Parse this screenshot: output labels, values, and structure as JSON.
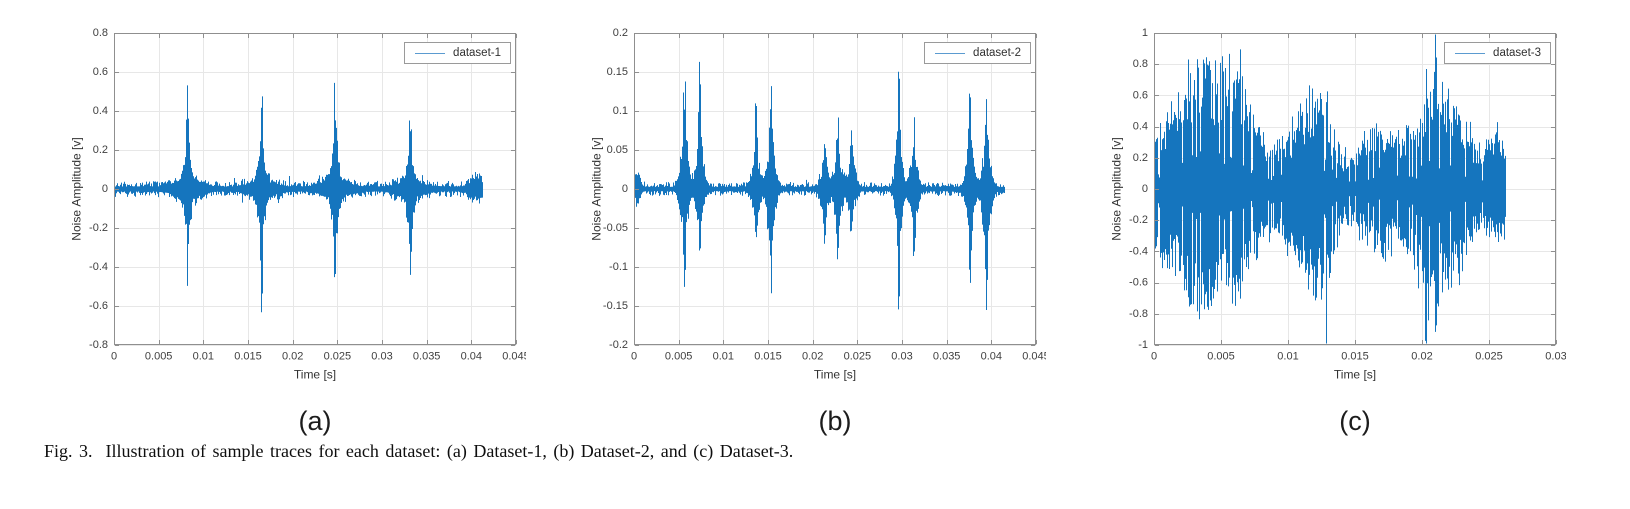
{
  "figure": {
    "caption": "Fig. 3.  Illustration of sample traces for each dataset: (a) Dataset-1, (b) Dataset-2, and (c) Dataset-3."
  },
  "colors": {
    "line": "#1575be",
    "grid": "#e7e7e7",
    "axis": "#8f8f8f",
    "tick_text": "#3f3f3f",
    "label_text": "#333333"
  },
  "chart_data": [
    {
      "type": "line",
      "panel_label": "(a)",
      "legend": "dataset-1",
      "xlabel": "Time [s]",
      "ylabel": "Noise Amplitude [v]",
      "xlim": [
        0,
        0.045
      ],
      "ylim": [
        -0.8,
        0.8
      ],
      "xticks": [
        0,
        0.005,
        0.01,
        0.015,
        0.02,
        0.025,
        0.03,
        0.035,
        0.04,
        0.045
      ],
      "xtick_labels": [
        "0",
        "0.005",
        "0.01",
        "0.015",
        "0.02",
        "0.025",
        "0.03",
        "0.035",
        "0.04",
        "0.045"
      ],
      "yticks": [
        -0.8,
        -0.6,
        -0.4,
        -0.2,
        0,
        0.2,
        0.4,
        0.6,
        0.8
      ],
      "ytick_labels": [
        "-0.8",
        "-0.6",
        "-0.4",
        "-0.2",
        "0",
        "0.2",
        "0.4",
        "0.6",
        "0.8"
      ],
      "grid": true,
      "legend_position": "top-right",
      "signal": {
        "description": "broadband noise floor ~±0.05 V with four sharp bipolar spikes",
        "seed": 7,
        "duration": 0.0413,
        "noise_floor": 0.042,
        "burst_fill": [
          0.5,
          0.5
        ],
        "spike_prob": 0.03,
        "spike_gain": 1.0,
        "streak_prob": 0,
        "bursts": [
          {
            "t": 0.0082,
            "up": 0.57,
            "down": 0.45,
            "w": 0.0003,
            "sharp": true
          },
          {
            "t": 0.0165,
            "up": 0.53,
            "down": 0.64,
            "w": 0.0003,
            "sharp": true
          },
          {
            "t": 0.0247,
            "up": 0.62,
            "down": 0.56,
            "w": 0.0003,
            "sharp": true
          },
          {
            "t": 0.0331,
            "up": 0.51,
            "down": 0.56,
            "w": 0.0003,
            "sharp": true
          },
          {
            "t": 0.0082,
            "up": 0.055,
            "down": 0.055,
            "w": 0.0012,
            "sharp": false
          },
          {
            "t": 0.0165,
            "up": 0.05,
            "down": 0.05,
            "w": 0.0012,
            "sharp": false
          },
          {
            "t": 0.0247,
            "up": 0.055,
            "down": 0.055,
            "w": 0.0012,
            "sharp": false
          },
          {
            "t": 0.0331,
            "up": 0.05,
            "down": 0.05,
            "w": 0.0012,
            "sharp": false
          },
          {
            "t": 0.0405,
            "up": 0.065,
            "down": 0.05,
            "w": 0.0006,
            "sharp": false
          }
        ]
      }
    },
    {
      "type": "line",
      "panel_label": "(b)",
      "legend": "dataset-2",
      "xlabel": "Time [s]",
      "ylabel": "Noise Amplitude [v]",
      "xlim": [
        0,
        0.045
      ],
      "ylim": [
        -0.2,
        0.2
      ],
      "xticks": [
        0,
        0.005,
        0.01,
        0.015,
        0.02,
        0.025,
        0.03,
        0.035,
        0.04,
        0.045
      ],
      "xtick_labels": [
        "0",
        "0.005",
        "0.01",
        "0.015",
        "0.02",
        "0.025",
        "0.03",
        "0.035",
        "0.04",
        "0.045"
      ],
      "yticks": [
        -0.2,
        -0.15,
        -0.1,
        -0.05,
        0,
        0.05,
        0.1,
        0.15,
        0.2
      ],
      "ytick_labels": [
        "-0.2",
        "-0.15",
        "-0.1",
        "-0.05",
        "0",
        "0.05",
        "0.1",
        "0.15",
        "0.2"
      ],
      "grid": true,
      "legend_position": "top-right",
      "signal": {
        "description": "very low noise floor ~±0.01 V with five groups of paired noise bursts",
        "seed": 13,
        "duration": 0.0415,
        "noise_floor": 0.009,
        "burst_fill": [
          0.5,
          0.5
        ],
        "spike_prob": 0.03,
        "spike_gain": 1.2,
        "streak_prob": 0,
        "bursts": [
          {
            "t": 0.0003,
            "up": 0.025,
            "down": 0.02,
            "w": 0.0003,
            "sharp": false
          },
          {
            "t": 0.0056,
            "up": 0.185,
            "down": 0.14,
            "w": 0.0004,
            "sharp": true
          },
          {
            "t": 0.0073,
            "up": 0.17,
            "down": 0.1,
            "w": 0.0004,
            "sharp": true
          },
          {
            "t": 0.0136,
            "up": 0.117,
            "down": 0.08,
            "w": 0.0004,
            "sharp": true
          },
          {
            "t": 0.0153,
            "up": 0.17,
            "down": 0.175,
            "w": 0.0004,
            "sharp": true
          },
          {
            "t": 0.0213,
            "up": 0.08,
            "down": 0.08,
            "w": 0.0004,
            "sharp": true
          },
          {
            "t": 0.0228,
            "up": 0.113,
            "down": 0.12,
            "w": 0.0004,
            "sharp": true
          },
          {
            "t": 0.0243,
            "up": 0.087,
            "down": 0.07,
            "w": 0.0004,
            "sharp": true
          },
          {
            "t": 0.0296,
            "up": 0.19,
            "down": 0.17,
            "w": 0.00035,
            "sharp": true
          },
          {
            "t": 0.0313,
            "up": 0.11,
            "down": 0.1,
            "w": 0.0004,
            "sharp": true
          },
          {
            "t": 0.0376,
            "up": 0.15,
            "down": 0.13,
            "w": 0.0004,
            "sharp": true
          },
          {
            "t": 0.0394,
            "up": 0.155,
            "down": 0.19,
            "w": 0.0004,
            "sharp": true
          }
        ]
      }
    },
    {
      "type": "line",
      "panel_label": "(c)",
      "legend": "dataset-3",
      "xlabel": "Time [s]",
      "ylabel": "Noise Amplitude [v]",
      "xlim": [
        0,
        0.03
      ],
      "ylim": [
        -1,
        1
      ],
      "xticks": [
        0,
        0.005,
        0.01,
        0.015,
        0.02,
        0.025,
        0.03
      ],
      "xtick_labels": [
        "0",
        "0.005",
        "0.01",
        "0.015",
        "0.02",
        "0.025",
        "0.03"
      ],
      "yticks": [
        -1,
        -0.8,
        -0.6,
        -0.4,
        -0.2,
        0,
        0.2,
        0.4,
        0.6,
        0.8,
        1
      ],
      "ytick_labels": [
        "-1",
        "-0.8",
        "-0.6",
        "-0.4",
        "-0.2",
        "0",
        "0.2",
        "0.4",
        "0.6",
        "0.8",
        "1"
      ],
      "grid": true,
      "legend_position": "top-right",
      "signal": {
        "description": "dense continuous noise ~±0.2 V with broad amplitude-modulated bursts up to ±1 V",
        "seed": 42,
        "duration": 0.0262,
        "noise_floor": 0.16,
        "burst_fill": [
          0.45,
          0.55
        ],
        "spike_prob": 0.05,
        "spike_gain": 1.6,
        "streak_prob": 0.1,
        "bursts": [
          {
            "t": 0.0005,
            "up": 0.3,
            "down": 0.3,
            "w": 0.0007,
            "sharp": false
          },
          {
            "t": 0.003,
            "up": 0.74,
            "down": 0.74,
            "w": 0.0013,
            "sharp": false
          },
          {
            "t": 0.006,
            "up": 0.76,
            "down": 0.62,
            "w": 0.0013,
            "sharp": false
          },
          {
            "t": 0.0095,
            "up": 0.2,
            "down": 0.2,
            "w": 0.001,
            "sharp": false
          },
          {
            "t": 0.012,
            "up": 0.58,
            "down": 0.66,
            "w": 0.0011,
            "sharp": false
          },
          {
            "t": 0.0128,
            "up": 0.2,
            "down": 0.78,
            "w": 0.0002,
            "sharp": true
          },
          {
            "t": 0.0165,
            "up": 0.33,
            "down": 0.3,
            "w": 0.0012,
            "sharp": false
          },
          {
            "t": 0.0203,
            "up": 0.3,
            "down": 0.84,
            "w": 0.0002,
            "sharp": true
          },
          {
            "t": 0.0205,
            "up": 0.4,
            "down": 0.52,
            "w": 0.0016,
            "sharp": false
          },
          {
            "t": 0.021,
            "up": 0.76,
            "down": 0.3,
            "w": 0.0002,
            "sharp": true
          },
          {
            "t": 0.0225,
            "up": 0.32,
            "down": 0.3,
            "w": 0.0012,
            "sharp": false
          },
          {
            "t": 0.0255,
            "up": 0.3,
            "down": 0.28,
            "w": 0.0007,
            "sharp": false
          }
        ]
      }
    }
  ]
}
